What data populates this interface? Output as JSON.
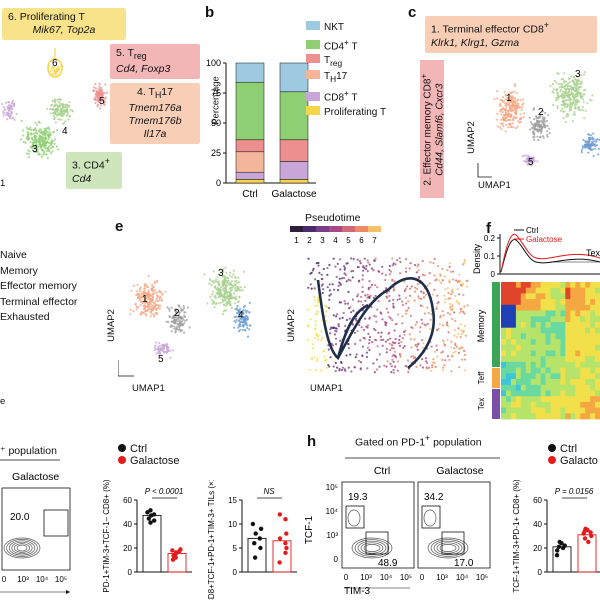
{
  "panels": {
    "a": {
      "clusters": [
        {
          "num": "6",
          "label": "Proliferating T",
          "genes": "Mik67, Top2a",
          "color": "#f5d64a"
        },
        {
          "num": "5",
          "label": "Treg",
          "genes": "Cd4, Foxp3",
          "color": "#ee8f8f"
        },
        {
          "num": "4",
          "label": "TH17",
          "genes": "Tmem176a\nTmem176b\nIl17a",
          "color": "#f4b69a"
        },
        {
          "num": "3",
          "label": "CD4+",
          "genes": "Cd4",
          "color": "#a7d08c"
        }
      ],
      "cluster_nums": [
        "6",
        "5",
        "4",
        "3"
      ],
      "axis_fragment": "1"
    },
    "b": {
      "letter": "b",
      "ylabel": "Percentage",
      "yticks": [
        "0",
        "25",
        "50",
        "75",
        "100"
      ],
      "categories": [
        "Ctrl",
        "Galactose"
      ],
      "legend": [
        {
          "label": "NKT",
          "color": "#9ecae1"
        },
        {
          "label": "CD4+ T",
          "color": "#8fcf73"
        },
        {
          "label": "Treg",
          "color": "#ee8f8f"
        },
        {
          "label": "TH17",
          "color": "#f4b69a"
        },
        {
          "label": "CD8+ T",
          "color": "#c8a7d8"
        },
        {
          "label": "Proliferating T",
          "color": "#f5d64a"
        }
      ]
    },
    "c": {
      "letter": "c",
      "box1_title": "1. Terminal effector CD8+",
      "box1_genes": "Klrk1, Klrg1, Gzma",
      "box2_title": "2. Effector memory CD8+",
      "box2_genes": "Cd44, Slamf6, Cxcr3",
      "xlabel": "UMAP1",
      "ylabel": "UMAP2",
      "cluster_nums": [
        "1",
        "2",
        "3",
        "5"
      ]
    },
    "d_legend": [
      "Naive",
      "Memory",
      "Effector memory",
      "Terminal effector",
      "Exhausted"
    ],
    "e": {
      "letter": "e",
      "pseudotime_title": "Pseudotime",
      "pseudotime_ticks": [
        "1",
        "2",
        "3",
        "4",
        "5",
        "6",
        "7"
      ],
      "xlabel": "UMAP1",
      "ylabel": "UMAP2",
      "cluster_nums": [
        "1",
        "2",
        "3",
        "4",
        "5"
      ]
    },
    "f": {
      "letter": "f",
      "ylabel_density": "Density",
      "yticks": [
        "0.2",
        "0.1",
        "0"
      ],
      "legend": [
        "Ctrl",
        "Galactose"
      ],
      "tex_label": "Tex",
      "row_labels": [
        "Memory",
        "Teff",
        "Tex"
      ]
    },
    "g": {
      "header": "+ population",
      "condition": "Galactose",
      "gate_value": "20.0",
      "xticks": [
        "0",
        "10³",
        "10⁴",
        "10⁵"
      ],
      "legend": [
        "Ctrl",
        "Galactose"
      ],
      "chart1": {
        "pval": "P < 0.0001",
        "ylabel": "PD-1+TIM-3+TCF-1– CD8+ (%)",
        "yticks": [
          "0",
          "20",
          "40",
          "60"
        ],
        "ctrl_mean": 55,
        "gal_mean": 18
      },
      "chart2": {
        "pval": "NS",
        "ylabel": "CD8+TCF-1+PD-1+TIM-3+ TILs (×10³)",
        "yticks": [
          "0",
          "5",
          "10",
          "15"
        ],
        "ctrl_mean": 7,
        "gal_mean": 6.5
      }
    },
    "h": {
      "letter": "h",
      "header": "Gated on PD-1+ population",
      "conditions": [
        "Ctrl",
        "Galactose"
      ],
      "ctrl_values": [
        "19.3",
        "48.9"
      ],
      "gal_values": [
        "34.2",
        "17.0"
      ],
      "xlabel": "TIM-3",
      "ylabel": "TCF-1",
      "yticks": [
        "10⁵",
        "10⁴",
        "10³",
        "0"
      ],
      "xticks": [
        "0",
        "10³",
        "10⁴",
        "10⁵"
      ],
      "legend": [
        "Ctrl",
        "Galacto"
      ],
      "chart": {
        "pval": "P = 0.0156",
        "ylabel": "TCF-1+TIM-3+PD-1+ CD8+ (%)",
        "yticks": [
          "0",
          "20",
          "40",
          "60"
        ],
        "ctrl_mean": 21,
        "gal_mean": 31
      }
    }
  }
}
